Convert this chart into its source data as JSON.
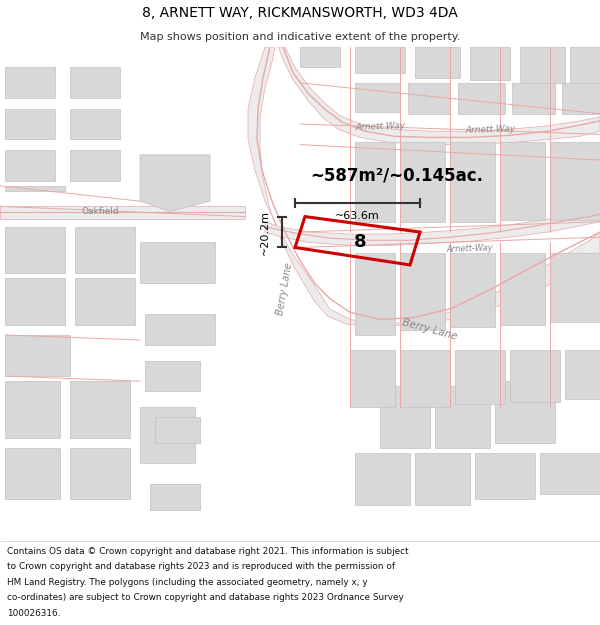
{
  "title": "8, ARNETT WAY, RICKMANSWORTH, WD3 4DA",
  "subtitle": "Map shows position and indicative extent of the property.",
  "footer_lines": [
    "Contains OS data © Crown copyright and database right 2021. This information is subject",
    "to Crown copyright and database rights 2023 and is reproduced with the permission of",
    "HM Land Registry. The polygons (including the associated geometry, namely x, y",
    "co-ordinates) are subject to Crown copyright and database rights 2023 Ordnance Survey",
    "100026316."
  ],
  "map_bg": "#ffffff",
  "road_line_color": "#e8a8a8",
  "road_fill": "#ececec",
  "building_fill": "#d8d8d8",
  "building_stroke": "#c0c0c0",
  "plot_stroke": "#cc0000",
  "area_text": "~587m²/~0.145ac.",
  "width_text": "~63.6m",
  "height_text": "~20.2m",
  "plot_label": "8",
  "label_color": "#888888",
  "measure_color": "#333333"
}
